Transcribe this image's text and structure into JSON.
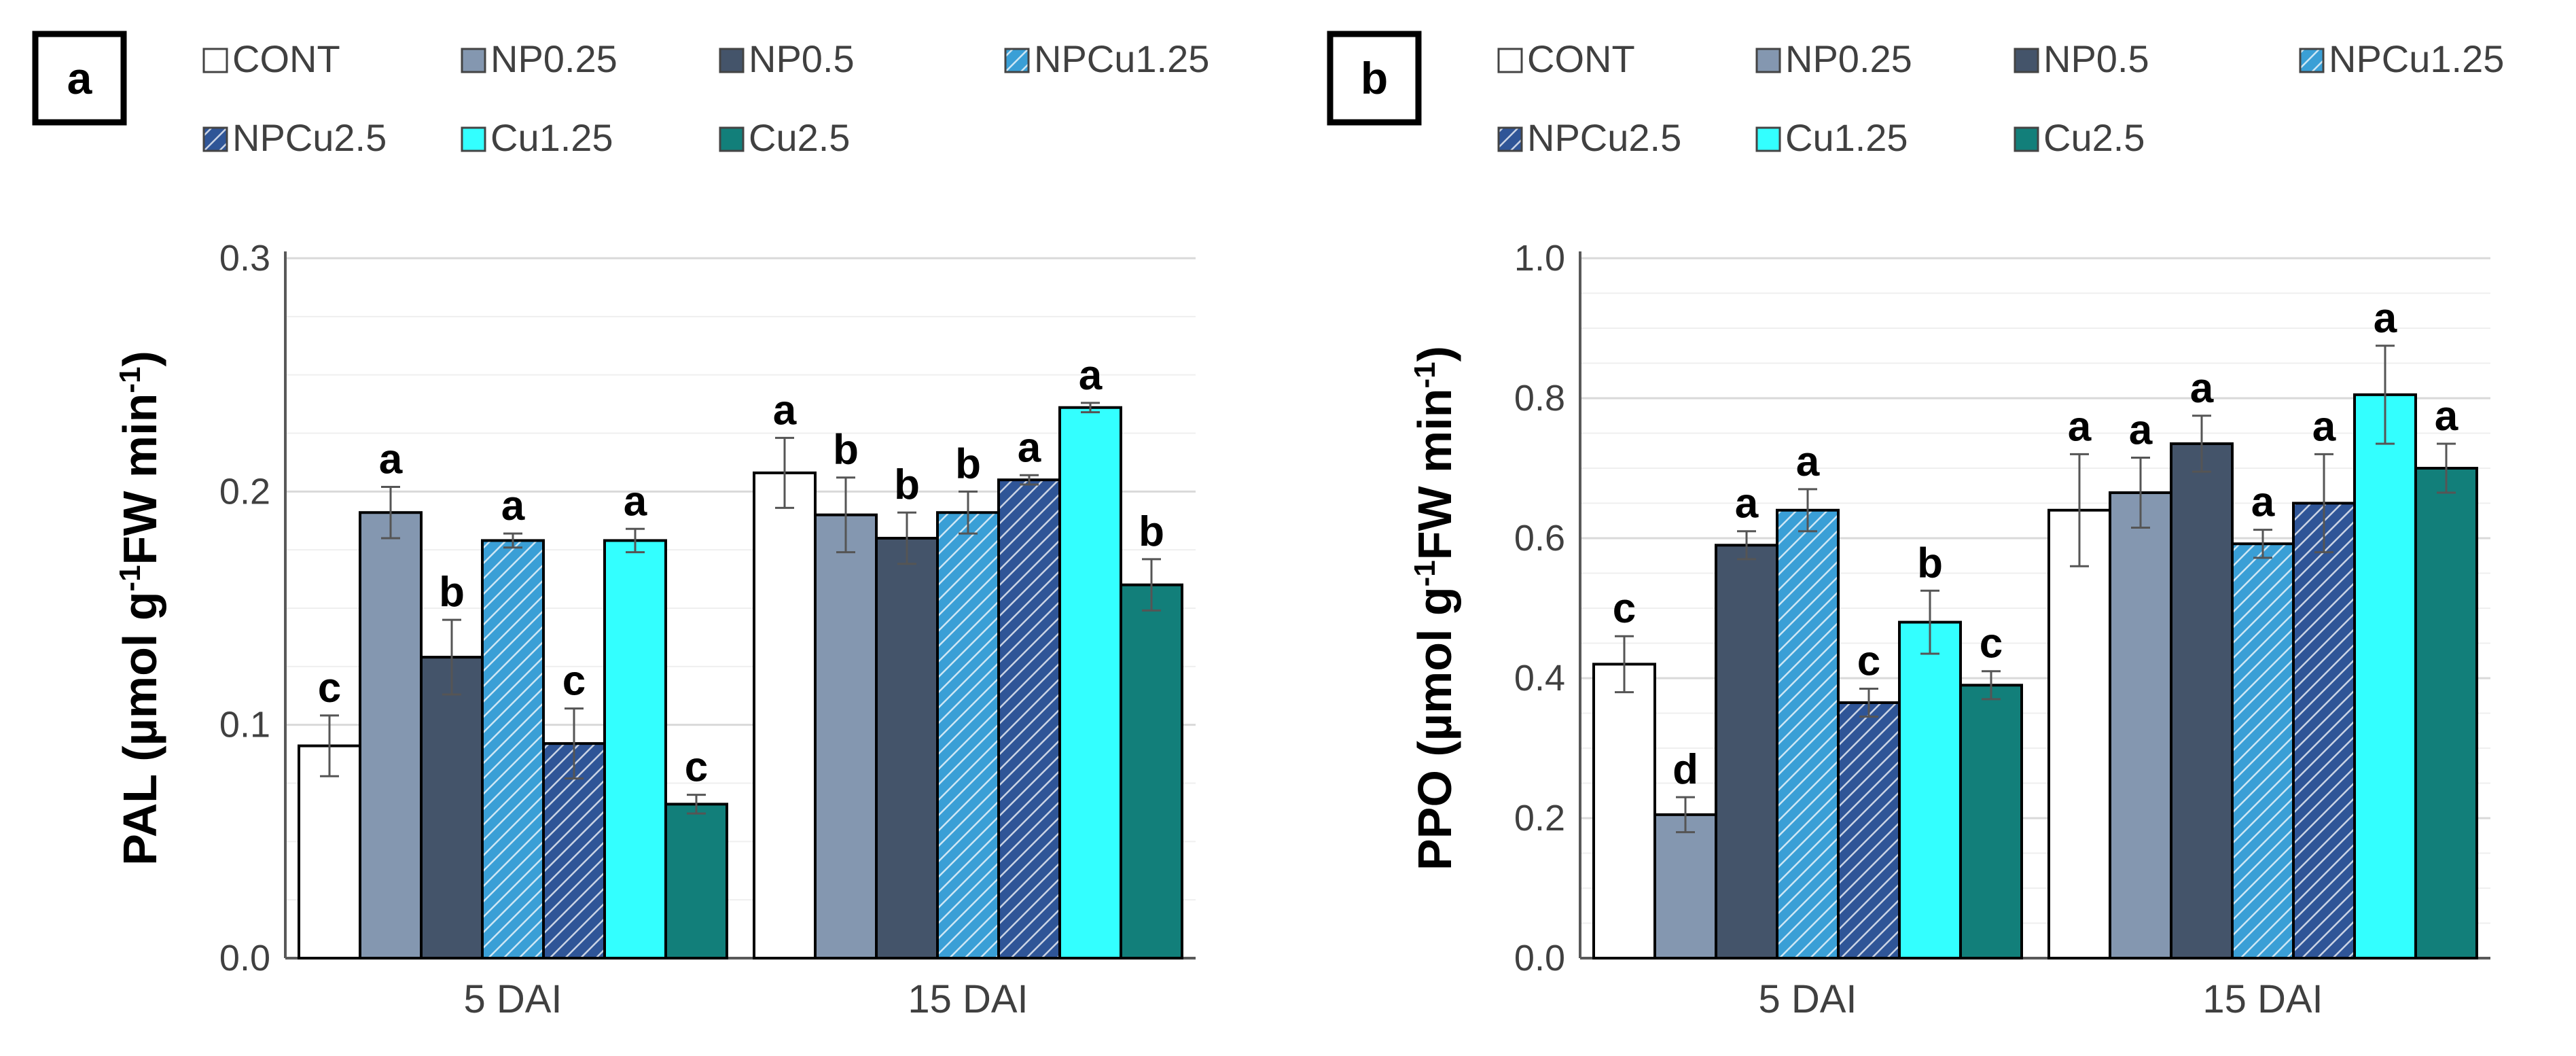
{
  "legend": [
    {
      "name": "CONT",
      "color": "#ffffff",
      "pattern": "none"
    },
    {
      "name": "NP0.25",
      "color": "#8497b0",
      "pattern": "none"
    },
    {
      "name": "NP0.5",
      "color": "#44546a",
      "pattern": "none"
    },
    {
      "name": "NPCu1.25",
      "color": "#3a9fd6",
      "pattern": "hatch"
    },
    {
      "name": "NPCu2.5",
      "color": "#2f5597",
      "pattern": "hatch"
    },
    {
      "name": "Cu1.25",
      "color": "#33ffff",
      "pattern": "none"
    },
    {
      "name": "Cu2.5",
      "color": "#127f7a",
      "pattern": "none"
    }
  ],
  "chart_data": [
    {
      "type": "bar",
      "panel_label": "a",
      "ylabel": "PAL (µmol g",
      "ylabel_sup": "-1",
      "ylabel_mid": "FW min",
      "ylabel_sup2": "-1",
      "ylabel_end": ")",
      "ylim": [
        0,
        0.3
      ],
      "yticks": [
        "0.0",
        "0.1",
        "0.2",
        "0.3"
      ],
      "ytick_values": [
        0,
        0.1,
        0.2,
        0.3
      ],
      "categories": [
        "5 DAI",
        "15 DAI"
      ],
      "grid": true,
      "series": [
        {
          "name": "CONT",
          "values": [
            0.091,
            0.208
          ],
          "errors": [
            0.013,
            0.015
          ],
          "letters": [
            "c",
            "a"
          ]
        },
        {
          "name": "NP0.25",
          "values": [
            0.191,
            0.19
          ],
          "errors": [
            0.011,
            0.016
          ],
          "letters": [
            "a",
            "b"
          ]
        },
        {
          "name": "NP0.5",
          "values": [
            0.129,
            0.18
          ],
          "errors": [
            0.016,
            0.011
          ],
          "letters": [
            "b",
            "b"
          ]
        },
        {
          "name": "NPCu1.25",
          "values": [
            0.179,
            0.191
          ],
          "errors": [
            0.003,
            0.009
          ],
          "letters": [
            "a",
            "b"
          ]
        },
        {
          "name": "NPCu2.5",
          "values": [
            0.092,
            0.205
          ],
          "errors": [
            0.015,
            0.002
          ],
          "letters": [
            "c",
            "a"
          ]
        },
        {
          "name": "Cu1.25",
          "values": [
            0.179,
            0.236
          ],
          "errors": [
            0.005,
            0.002
          ],
          "letters": [
            "a",
            "a"
          ]
        },
        {
          "name": "Cu2.5",
          "values": [
            0.066,
            0.16
          ],
          "errors": [
            0.004,
            0.011
          ],
          "letters": [
            "c",
            "b"
          ]
        }
      ]
    },
    {
      "type": "bar",
      "panel_label": "b",
      "ylabel": "PPO (µmol g",
      "ylabel_sup": "-1",
      "ylabel_mid": "FW min",
      "ylabel_sup2": "-1",
      "ylabel_end": ")",
      "ylim": [
        0,
        1.0
      ],
      "yticks": [
        "0.0",
        "0.2",
        "0.4",
        "0.6",
        "0.8",
        "1.0"
      ],
      "ytick_values": [
        0,
        0.2,
        0.4,
        0.6,
        0.8,
        1.0
      ],
      "categories": [
        "5 DAI",
        "15 DAI"
      ],
      "grid": true,
      "series": [
        {
          "name": "CONT",
          "values": [
            0.42,
            0.64
          ],
          "errors": [
            0.04,
            0.08
          ],
          "letters": [
            "c",
            "a"
          ]
        },
        {
          "name": "NP0.25",
          "values": [
            0.205,
            0.665
          ],
          "errors": [
            0.025,
            0.05
          ],
          "letters": [
            "d",
            "a"
          ]
        },
        {
          "name": "NP0.5",
          "values": [
            0.59,
            0.735
          ],
          "errors": [
            0.02,
            0.04
          ],
          "letters": [
            "a",
            "a"
          ]
        },
        {
          "name": "NPCu1.25",
          "values": [
            0.64,
            0.592
          ],
          "errors": [
            0.03,
            0.02
          ],
          "letters": [
            "a",
            "a"
          ]
        },
        {
          "name": "NPCu2.5",
          "values": [
            0.365,
            0.65
          ],
          "errors": [
            0.02,
            0.07
          ],
          "letters": [
            "c",
            "a"
          ]
        },
        {
          "name": "Cu1.25",
          "values": [
            0.48,
            0.805
          ],
          "errors": [
            0.045,
            0.07
          ],
          "letters": [
            "b",
            "a"
          ]
        },
        {
          "name": "Cu2.5",
          "values": [
            0.39,
            0.7
          ],
          "errors": [
            0.02,
            0.035
          ],
          "letters": [
            "c",
            "a"
          ]
        }
      ]
    }
  ]
}
